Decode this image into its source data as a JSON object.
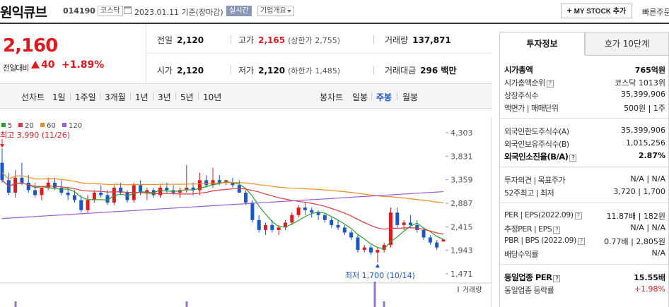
{
  "header": {
    "stock_name": "원익큐브",
    "stock_code": "014190",
    "market": "코스닥",
    "date": "2023.01.11",
    "date_basis": "기준(장마감)",
    "realtime": "실시간",
    "company_info": "기업개요",
    "mystock_button": "MY STOCK 추가",
    "quick_search": "빠른주문"
  },
  "price_box": {
    "price": "2,160",
    "diff_label": "전일대비",
    "diff_value": "40",
    "diff_percent": "+1.89%"
  },
  "summary": {
    "prev_close_label": "전일",
    "prev_close": "2,120",
    "high_label": "고가",
    "high": "2,165",
    "upper_limit": "(상한가 2,755)",
    "volume_label": "거래량",
    "volume": "137,871",
    "open_label": "시가",
    "open": "2,120",
    "low_label": "저가",
    "low": "2,120",
    "lower_limit": "(하한가 1,485)",
    "amount_label": "거래대금",
    "amount": "296 백만"
  },
  "period_bar": {
    "line_label": "선차트",
    "periods": [
      "1일",
      "1주일",
      "3개월",
      "1년",
      "3년",
      "5년",
      "10년"
    ],
    "candle_label": "봉차트",
    "candles": [
      "일봉",
      "주봉",
      "월봉"
    ],
    "active_candle": "주봉"
  },
  "chart_data": {
    "type": "candlestick",
    "legend": [
      {
        "name": "5",
        "color": "#2ca02c"
      },
      {
        "name": "20",
        "color": "#e0383e"
      },
      {
        "name": "60",
        "color": "#f08c1e"
      },
      {
        "name": "120",
        "color": "#9a5cd6"
      }
    ],
    "y_ticks": [
      4303,
      3831,
      3359,
      2887,
      2415,
      1943,
      1471
    ],
    "ylim": [
      1471,
      4303
    ],
    "high_annotation": "최고 3,990 (11/26)",
    "low_annotation": "최저 1,700 (10/14)",
    "volume_label": "거래량",
    "candles_ohlc": [
      [
        3700,
        3990,
        3300,
        3350
      ],
      [
        3350,
        3500,
        3050,
        3100
      ],
      [
        3100,
        3550,
        3000,
        3400
      ],
      [
        3400,
        3700,
        3250,
        3300
      ],
      [
        3300,
        3450,
        3100,
        3150
      ],
      [
        3150,
        3300,
        3000,
        3050
      ],
      [
        3050,
        3200,
        2950,
        3200
      ],
      [
        3200,
        3400,
        3150,
        3300
      ],
      [
        3300,
        3400,
        3150,
        3200
      ],
      [
        3200,
        3350,
        3050,
        3100
      ],
      [
        3100,
        3200,
        2950,
        3050
      ],
      [
        3050,
        3150,
        2900,
        2950
      ],
      [
        2950,
        3050,
        2700,
        2750
      ],
      [
        2750,
        3050,
        2700,
        2950
      ],
      [
        2950,
        3150,
        2900,
        3100
      ],
      [
        3100,
        3250,
        3000,
        3050
      ],
      [
        3050,
        3150,
        2850,
        2900
      ],
      [
        2900,
        3250,
        2850,
        3200
      ],
      [
        3200,
        3300,
        3050,
        3100
      ],
      [
        3100,
        3150,
        2900,
        2950
      ],
      [
        2950,
        3300,
        2900,
        3250
      ],
      [
        3250,
        3350,
        3050,
        3100
      ],
      [
        3100,
        3200,
        2950,
        3150
      ],
      [
        3150,
        3200,
        3000,
        3050
      ],
      [
        3050,
        3250,
        3000,
        3200
      ],
      [
        3200,
        3300,
        3100,
        3150
      ],
      [
        3150,
        3250,
        3050,
        3100
      ],
      [
        3100,
        3200,
        3000,
        3150
      ],
      [
        3150,
        3650,
        3100,
        3200
      ],
      [
        3200,
        3300,
        3050,
        3150
      ],
      [
        3150,
        3500,
        3050,
        3350
      ],
      [
        3350,
        3450,
        3200,
        3250
      ],
      [
        3250,
        3600,
        3200,
        3350
      ],
      [
        3350,
        3450,
        3250,
        3300
      ],
      [
        3300,
        3350,
        3250,
        3350
      ],
      [
        3300,
        3400,
        3200,
        3250
      ],
      [
        3250,
        3350,
        3100,
        3100
      ],
      [
        3100,
        3150,
        2850,
        2900
      ],
      [
        2900,
        2950,
        2500,
        2550
      ],
      [
        2550,
        2650,
        2300,
        2350
      ],
      [
        2350,
        2500,
        2250,
        2450
      ],
      [
        2450,
        2550,
        2300,
        2350
      ],
      [
        2350,
        2450,
        2250,
        2400
      ],
      [
        2400,
        2550,
        2350,
        2500
      ],
      [
        2500,
        2700,
        2450,
        2650
      ],
      [
        2650,
        2850,
        2600,
        2800
      ],
      [
        2800,
        2900,
        2650,
        2750
      ],
      [
        2750,
        2800,
        2600,
        2700
      ],
      [
        2700,
        2750,
        2550,
        2650
      ],
      [
        2650,
        2700,
        2500,
        2550
      ],
      [
        2550,
        2600,
        2400,
        2450
      ],
      [
        2450,
        2550,
        2350,
        2400
      ],
      [
        2400,
        2450,
        2250,
        2300
      ],
      [
        2300,
        2350,
        2150,
        2200
      ],
      [
        2200,
        2250,
        1900,
        1950
      ],
      [
        1950,
        2050,
        1900,
        2000
      ],
      [
        2000,
        2050,
        1850,
        1900
      ],
      [
        1900,
        2000,
        1700,
        1950
      ],
      [
        1950,
        2100,
        1900,
        2050
      ],
      [
        2050,
        2800,
        2000,
        2700
      ],
      [
        2700,
        2800,
        2400,
        2450
      ],
      [
        2450,
        2550,
        2350,
        2500
      ],
      [
        2500,
        2650,
        2400,
        2450
      ],
      [
        2450,
        2550,
        2300,
        2350
      ],
      [
        2350,
        2400,
        2150,
        2200
      ],
      [
        2200,
        2250,
        2050,
        2100
      ],
      [
        2100,
        2150,
        1950,
        2000
      ],
      [
        2120,
        2165,
        2120,
        2160
      ]
    ]
  },
  "right_panel": {
    "tab_active": "투자정보",
    "tab_other": "호가 10단계",
    "rows": [
      {
        "k": "시가총액",
        "v": "765억원"
      },
      {
        "k": "시가총액순위",
        "v": "코스닥 1013위"
      },
      {
        "k": "상장주식수",
        "v": "35,399,906"
      },
      {
        "k": "액면가 | 매매단위",
        "v": "500원 | 1주"
      },
      {
        "k": "외국인한도주식수(A)",
        "v": "35,399,906"
      },
      {
        "k": "외국인보유주식수(B)",
        "v": "1,015,256"
      },
      {
        "k": "외국인소진율(B/A)",
        "v": "2.87%"
      },
      {
        "k": "투자의견 | 목표주가",
        "v": "N/A | N/A"
      },
      {
        "k": "52주최고 | 최저",
        "v": "3,720 | 1,700"
      },
      {
        "k": "PER | EPS(2022.09)",
        "v": "11.87배 | 182원"
      },
      {
        "k": "추정PER | EPS",
        "v": "N/A | N/A"
      },
      {
        "k": "PBR | BPS (2022.09)",
        "v": "0.77배 | 2,805원"
      },
      {
        "k": "배당수익률",
        "v": "N/A"
      },
      {
        "k": "동일업종 PER",
        "v": "15.55배"
      },
      {
        "k": "동일업종 등락률",
        "v": "+1.98%"
      }
    ]
  }
}
